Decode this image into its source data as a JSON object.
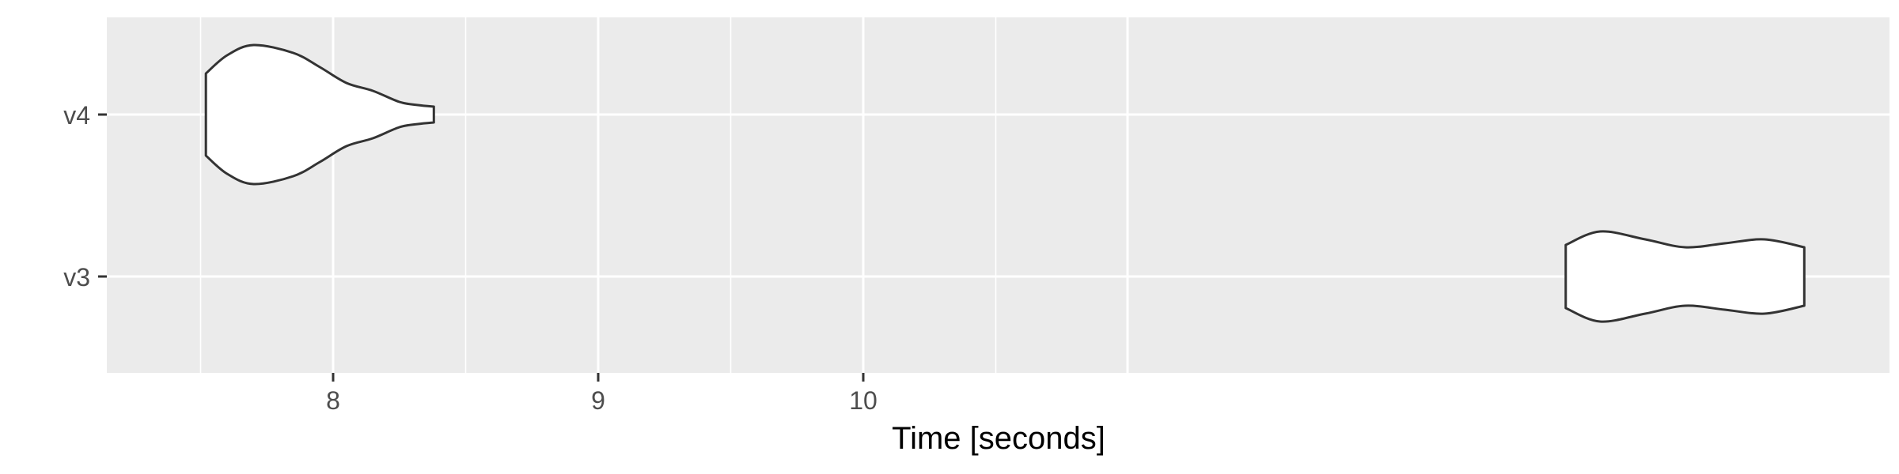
{
  "chart_data": {
    "type": "violin",
    "orientation": "horizontal",
    "xlabel": "Time [seconds]",
    "ylabel": "",
    "x_ticks": [
      8,
      9,
      10
    ],
    "x_tick_labels": [
      "8",
      "9",
      "10"
    ],
    "categories": [
      "v4",
      "v3"
    ],
    "grid": true,
    "legend": "none",
    "colors": {
      "panel": "#ebebeb",
      "grid": "#ffffff",
      "violin_fill": "#ffffff",
      "violin_stroke": "#333333",
      "tick_text": "#4d4d4d"
    },
    "violins": [
      {
        "category": "v4",
        "x_min": 7.52,
        "x_max": 8.38,
        "profile": [
          {
            "x": 7.52,
            "w": 0.52
          },
          {
            "x": 7.6,
            "w": 0.75
          },
          {
            "x": 7.7,
            "w": 0.88
          },
          {
            "x": 7.85,
            "w": 0.78
          },
          {
            "x": 7.95,
            "w": 0.6
          },
          {
            "x": 8.05,
            "w": 0.4
          },
          {
            "x": 8.15,
            "w": 0.3
          },
          {
            "x": 8.25,
            "w": 0.16
          },
          {
            "x": 8.32,
            "w": 0.12
          },
          {
            "x": 8.38,
            "w": 0.1
          }
        ]
      },
      {
        "category": "v3",
        "x_min": 12.65,
        "x_max": 13.55,
        "profile": [
          {
            "x": 12.65,
            "w": 0.4
          },
          {
            "x": 12.78,
            "w": 0.57
          },
          {
            "x": 12.95,
            "w": 0.47
          },
          {
            "x": 13.1,
            "w": 0.37
          },
          {
            "x": 13.25,
            "w": 0.42
          },
          {
            "x": 13.4,
            "w": 0.47
          },
          {
            "x": 13.55,
            "w": 0.37
          }
        ]
      }
    ]
  }
}
